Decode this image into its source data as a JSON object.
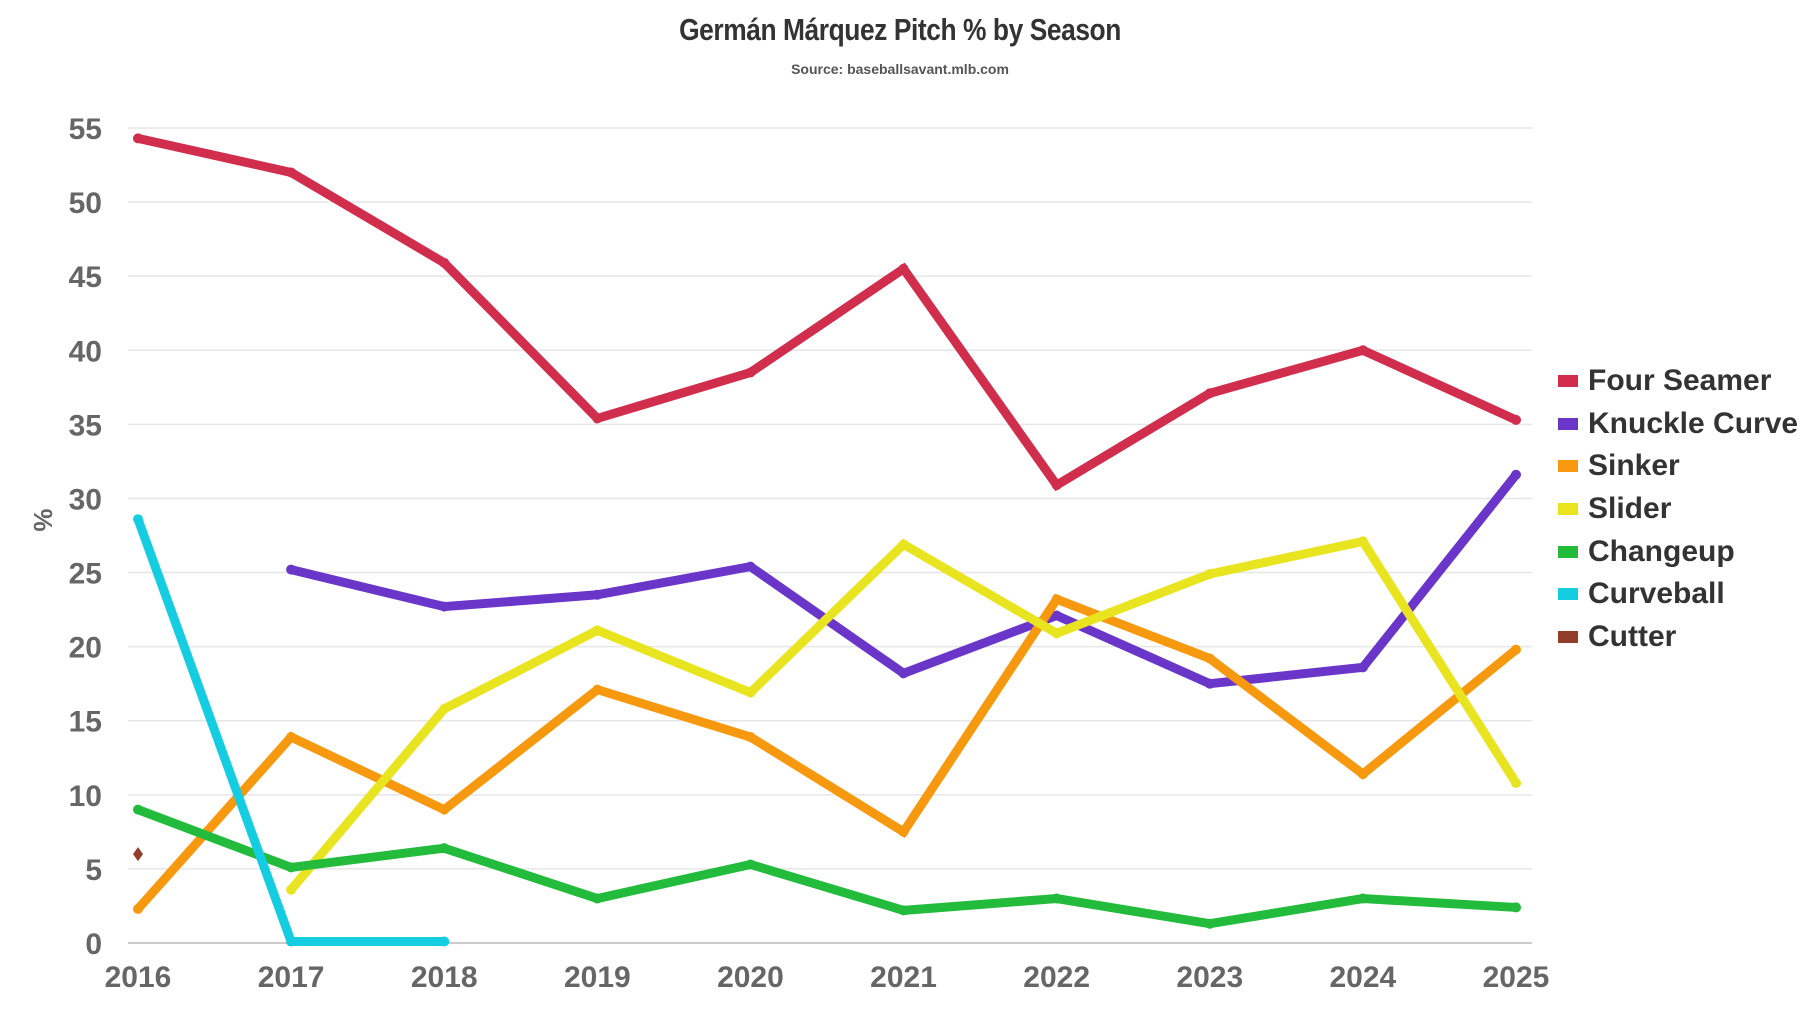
{
  "chart_data": {
    "type": "line",
    "title": "Germán Márquez Pitch % by Season",
    "subtitle": "Source: baseballsavant.mlb.com",
    "xlabel": "",
    "ylabel": "%",
    "x": [
      "2016",
      "2017",
      "2018",
      "2019",
      "2020",
      "2021",
      "2022",
      "2023",
      "2024",
      "2025"
    ],
    "ylim": [
      0,
      55
    ],
    "yticks": [
      "0",
      "5",
      "10",
      "15",
      "20",
      "25",
      "30",
      "35",
      "40",
      "45",
      "50",
      "55"
    ],
    "grid": true,
    "legend_position": "right",
    "series": [
      {
        "name": "Four Seamer",
        "color": "#d12d4c",
        "values": [
          54.3,
          52.0,
          45.9,
          35.4,
          38.5,
          45.5,
          30.9,
          37.1,
          40.0,
          35.3
        ]
      },
      {
        "name": "Knuckle Curve",
        "color": "#6a35c9",
        "values": [
          null,
          25.2,
          22.7,
          23.5,
          25.4,
          18.2,
          22.1,
          17.5,
          18.6,
          31.6
        ]
      },
      {
        "name": "Sinker",
        "color": "#f7990f",
        "values": [
          2.3,
          13.9,
          9.0,
          17.1,
          13.9,
          7.5,
          23.2,
          19.2,
          11.4,
          19.8
        ]
      },
      {
        "name": "Slider",
        "color": "#e8e520",
        "values": [
          null,
          3.6,
          15.8,
          21.1,
          16.9,
          26.9,
          20.9,
          24.9,
          27.1,
          10.8
        ]
      },
      {
        "name": "Changeup",
        "color": "#22bb3c",
        "values": [
          9.0,
          5.1,
          6.4,
          3.0,
          5.3,
          2.2,
          3.0,
          1.3,
          3.0,
          2.4
        ]
      },
      {
        "name": "Curveball",
        "color": "#15cde0",
        "values": [
          28.6,
          0.1,
          0.1,
          null,
          null,
          null,
          null,
          null,
          null,
          null
        ]
      },
      {
        "name": "Cutter",
        "color": "#923c2a",
        "values": [
          6.0,
          null,
          null,
          null,
          null,
          null,
          null,
          null,
          null,
          null
        ]
      }
    ]
  }
}
